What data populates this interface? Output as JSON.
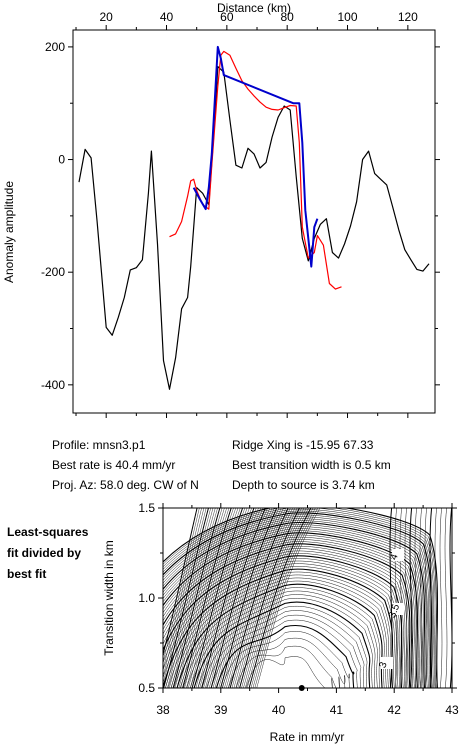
{
  "chart_data": [
    {
      "type": "line",
      "xlabel": "Distance (km)",
      "ylabel": "Anomaly amplitude",
      "xlim": [
        9,
        129
      ],
      "ylim": [
        -450,
        230
      ],
      "xticks": [
        20,
        40,
        60,
        80,
        100,
        120
      ],
      "yticks": [
        200,
        0,
        -200,
        -400
      ],
      "grid": false,
      "legend": "none",
      "series": [
        {
          "color": "#000000",
          "x": [
            11,
            13,
            15,
            17,
            20,
            22,
            24,
            26,
            28,
            30,
            32,
            34,
            35,
            37,
            39,
            41,
            43,
            45,
            47,
            48,
            50,
            52,
            54,
            56,
            57,
            59,
            61,
            63,
            65,
            67,
            69,
            71,
            73,
            75,
            77,
            79,
            81,
            83,
            85,
            87,
            89,
            91,
            93,
            95,
            97,
            99,
            101,
            103,
            105,
            107,
            109,
            111,
            113,
            115,
            117,
            119,
            121,
            123,
            125,
            127
          ],
          "y": [
            -40,
            18,
            3,
            -110,
            -298,
            -312,
            -280,
            -245,
            -196,
            -192,
            -178,
            -60,
            15,
            -150,
            -357,
            -408,
            -352,
            -265,
            -245,
            -190,
            -50,
            -60,
            -80,
            70,
            165,
            155,
            70,
            -10,
            -15,
            20,
            10,
            -15,
            -5,
            40,
            75,
            95,
            88,
            -30,
            -140,
            -180,
            -140,
            -115,
            -105,
            -165,
            -175,
            -150,
            -118,
            -75,
            0,
            15,
            -25,
            -35,
            -45,
            -85,
            -125,
            -160,
            -178,
            -195,
            -198,
            -185
          ]
        },
        {
          "color": "#ff0000",
          "x": [
            41,
            43,
            45,
            47,
            48,
            49,
            50,
            52,
            54,
            55,
            57,
            58,
            59,
            61,
            63,
            65,
            67,
            69,
            71,
            73,
            75,
            77,
            79,
            81,
            83,
            84,
            85,
            87,
            89,
            90,
            92,
            94,
            96,
            98
          ],
          "y": [
            -137,
            -132,
            -110,
            -65,
            -38,
            -35,
            -55,
            -80,
            -88,
            -10,
            130,
            185,
            192,
            185,
            162,
            140,
            125,
            113,
            102,
            93,
            89,
            88,
            92,
            96,
            95,
            30,
            -120,
            -175,
            -165,
            -135,
            -152,
            -220,
            -230,
            -226
          ]
        },
        {
          "color": "#0000cc",
          "x": [
            49,
            51,
            53,
            54,
            55,
            57,
            58,
            59,
            82,
            84,
            85,
            86,
            87,
            88,
            89,
            90
          ],
          "y": [
            -50,
            -70,
            -88,
            -50,
            10,
            200,
            180,
            150,
            100,
            100,
            30,
            -90,
            -140,
            -190,
            -120,
            -105
          ]
        }
      ]
    },
    {
      "type": "contour",
      "xlabel": "Rate in mm/yr",
      "ylabel": "Transition width in km",
      "xlim": [
        38,
        43
      ],
      "ylim": [
        0.5,
        1.5
      ],
      "xticks": [
        38,
        39,
        40,
        41,
        42,
        43
      ],
      "yticks": [
        0.5,
        1.0,
        1.5
      ],
      "contour_labels": [
        "4",
        "3.5",
        "3"
      ],
      "minimum_marker": {
        "x": 40.4,
        "y": 0.5
      }
    }
  ],
  "profile_info": {
    "profile": "Profile: mnsn3.p1",
    "best_rate": "Best rate is 40.4 mm/yr",
    "proj_az": "Proj. Az: 58.0 deg. CW of N",
    "ridge_xing": "Ridge Xing is -15.95 67.33",
    "best_width": "Best transition width is 0.5 km",
    "depth": "Depth to source is   3.74 km"
  },
  "contour_note": [
    "Least-squares",
    "fit divided by",
    "best fit"
  ]
}
